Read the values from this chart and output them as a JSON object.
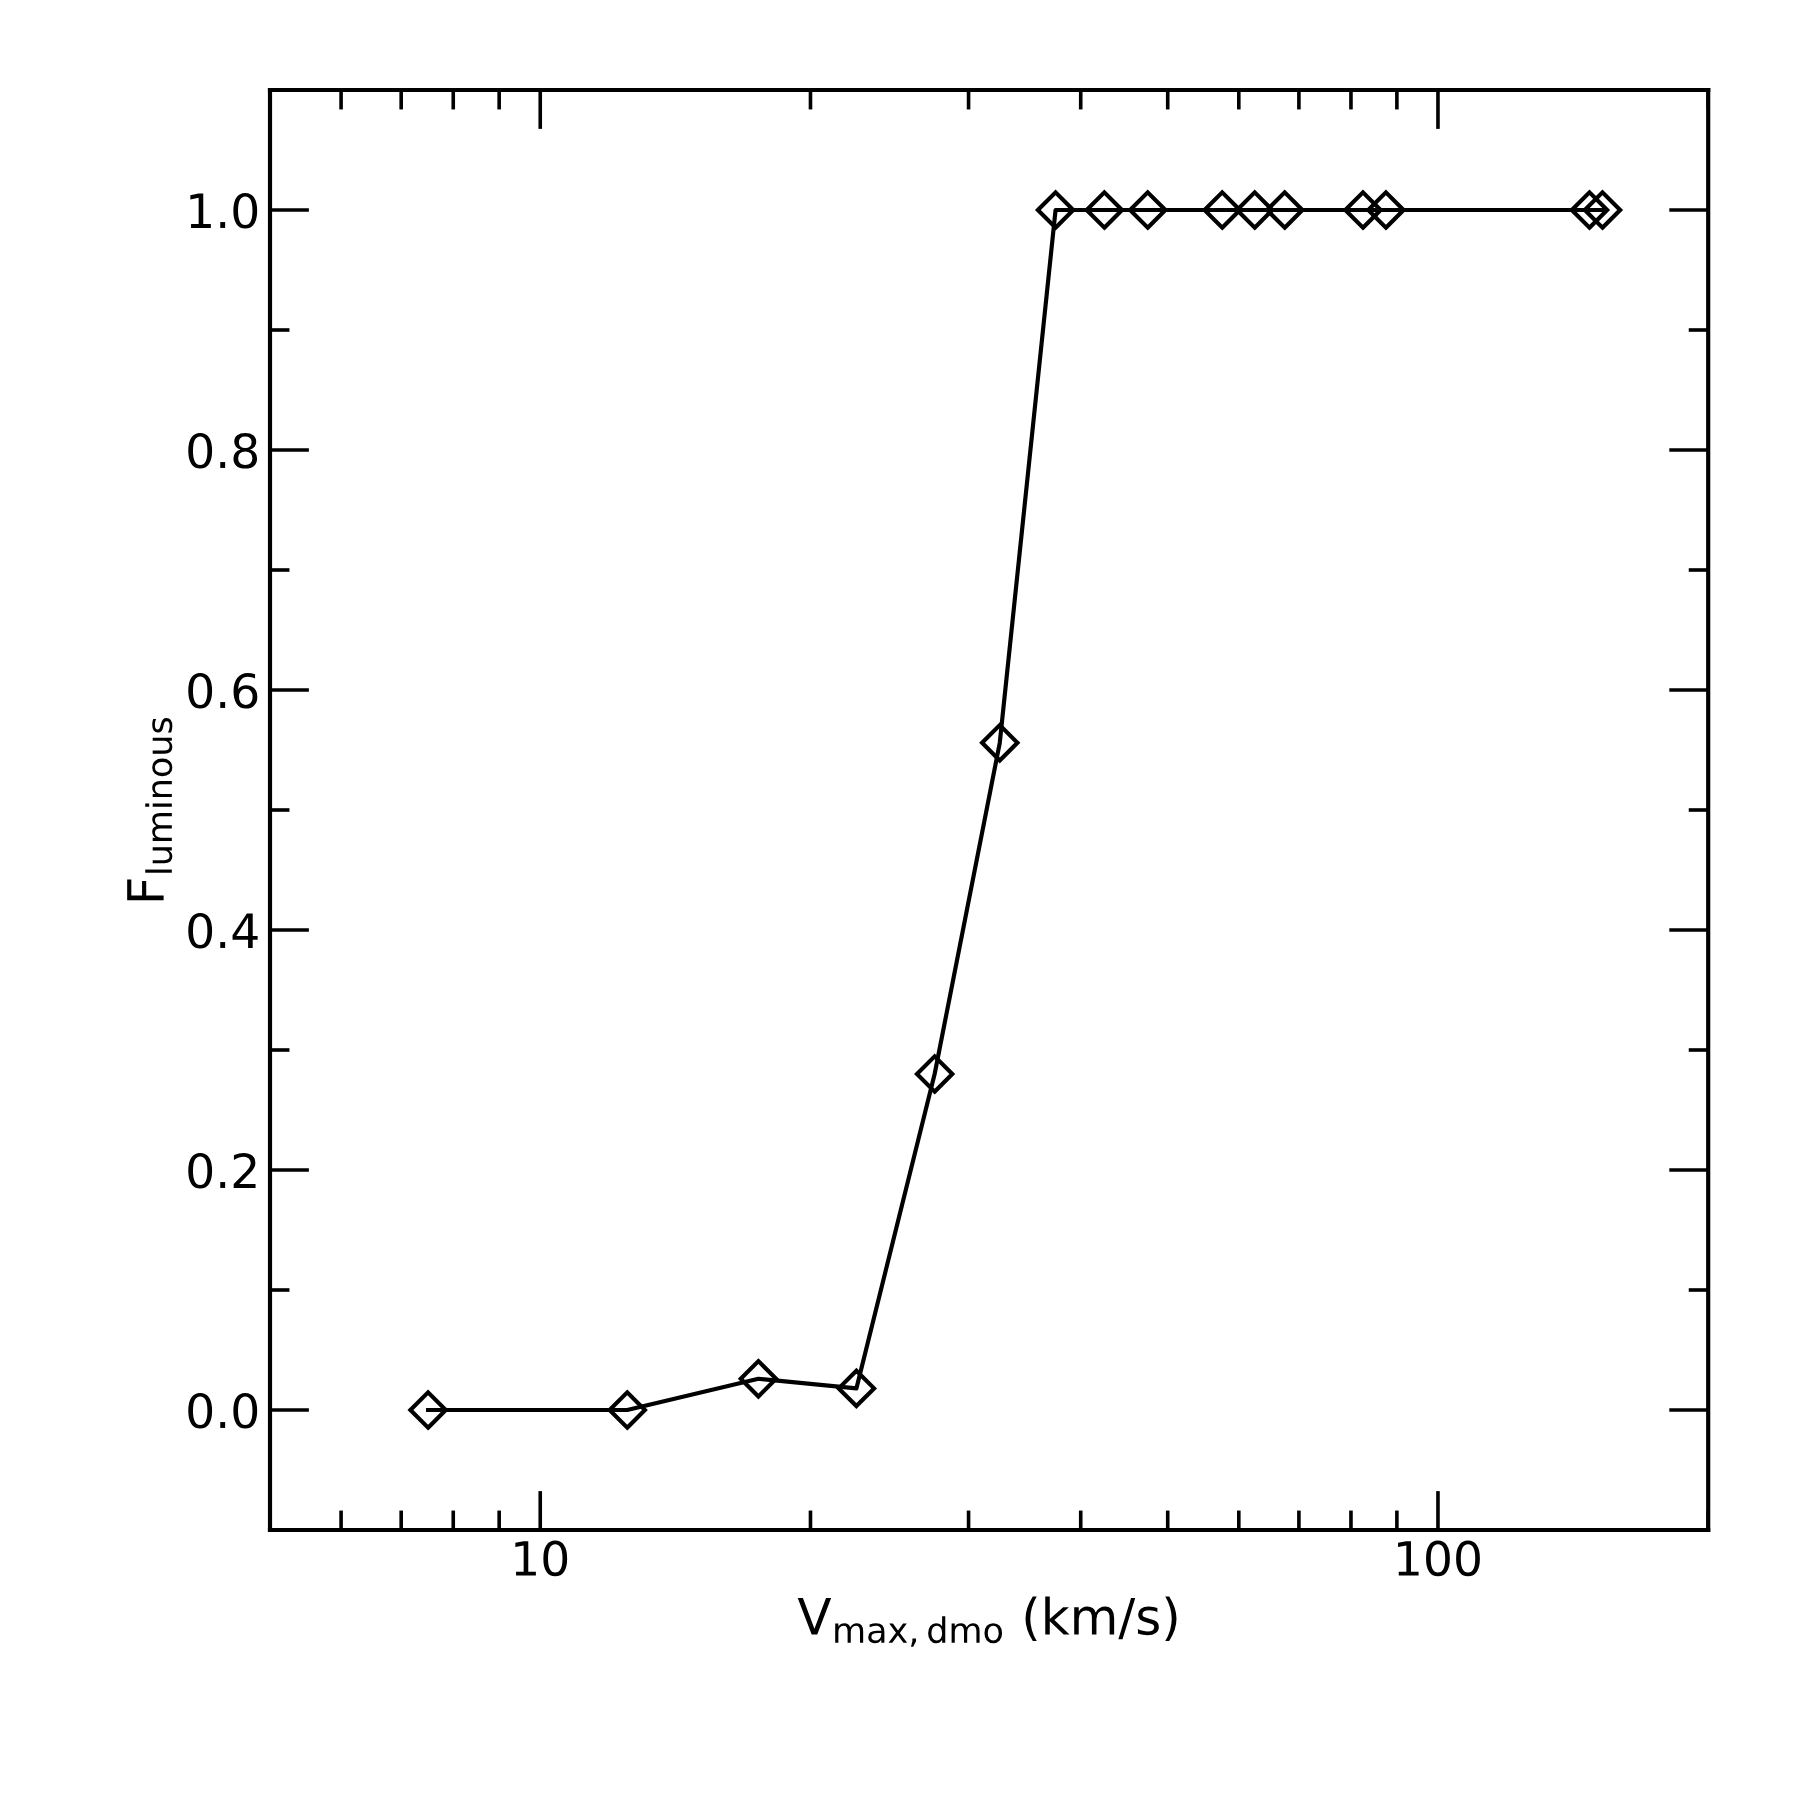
{
  "chart_data": {
    "type": "line",
    "xlabel": "V$_{max,dmo}$ (km/s)",
    "ylabel": "F$_{luminous}$",
    "log": "x",
    "xlim": [
      5,
      200
    ],
    "xticks": [
      10,
      100
    ],
    "ylim": [
      -0.1,
      1.1
    ],
    "yticks": [
      {
        "value": 0.0,
        "label": "0.0"
      },
      0.2,
      0.4,
      0.6,
      0.8,
      {
        "value": 1.0,
        "label": "1.0"
      }
    ],
    "grid": false,
    "marker": "diamond",
    "line_style": "solid",
    "series": [
      {
        "color": "#000000",
        "x": [
          7.5,
          12.5,
          17.5,
          22.5,
          27.5,
          32.5,
          37.5,
          42.5,
          47.5,
          57.5,
          62.5,
          67.5,
          82.5,
          87.5,
          147.5,
          152.5
        ],
        "values": [
          0,
          0,
          0.026,
          0.018,
          0.28,
          0.556,
          1,
          1,
          1,
          1,
          1,
          1,
          1,
          1,
          1,
          1
        ]
      }
    ]
  }
}
